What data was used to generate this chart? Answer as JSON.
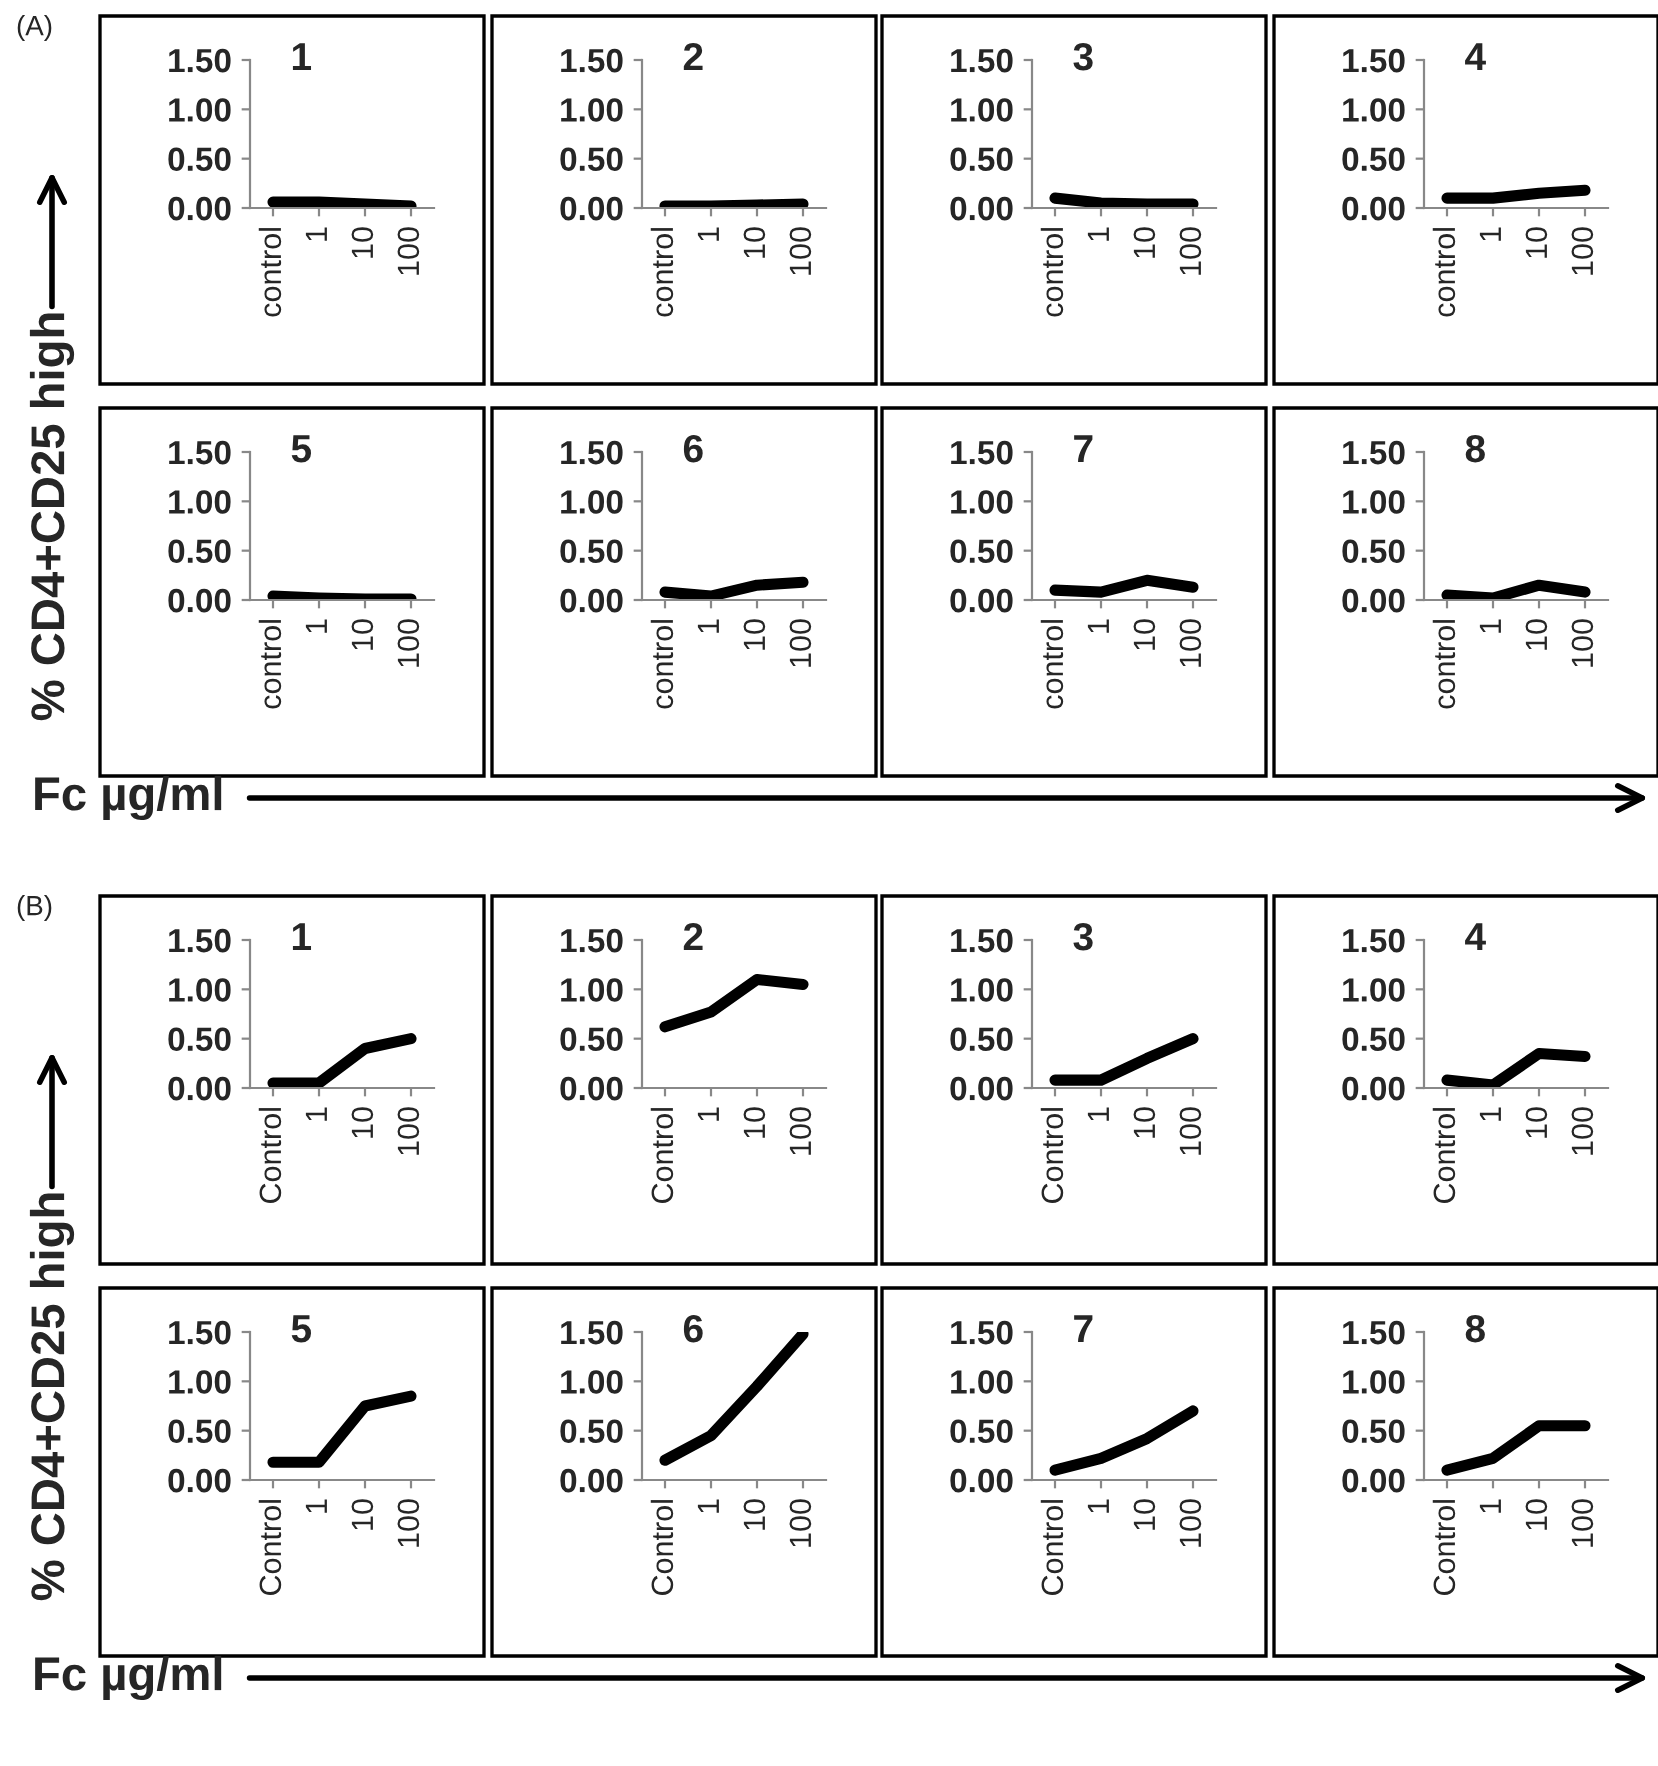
{
  "chart_data": [
    {
      "type": "line",
      "title": "1",
      "annotations": [
        "(A)"
      ],
      "ylabel": "% CD4+CD25 high",
      "categories": [
        "control",
        "1",
        "10",
        "100"
      ],
      "values": [
        0.06,
        0.06,
        0.04,
        0.02
      ],
      "color": "#000000",
      "ylim": [
        0,
        1.5
      ],
      "yticks": [
        {
          "value": 0,
          "label": "0.00"
        },
        {
          "value": 0.5,
          "label": "0.50"
        },
        {
          "value": 1,
          "label": "1.00"
        },
        {
          "value": 1.5,
          "label": "1.50"
        }
      ]
    },
    {
      "type": "line",
      "title": "2",
      "categories": [
        "control",
        "1",
        "10",
        "100"
      ],
      "values": [
        0.02,
        0.02,
        0.03,
        0.04
      ],
      "color": "#000000",
      "ylim": [
        0,
        1.5
      ],
      "yticks": [
        {
          "value": 0,
          "label": "0.00"
        },
        {
          "value": 0.5,
          "label": "0.50"
        },
        {
          "value": 1,
          "label": "1.00"
        },
        {
          "value": 1.5,
          "label": "1.50"
        }
      ]
    },
    {
      "type": "line",
      "title": "3",
      "categories": [
        "control",
        "1",
        "10",
        "100"
      ],
      "values": [
        0.1,
        0.05,
        0.04,
        0.04
      ],
      "color": "#000000",
      "ylim": [
        0,
        1.5
      ],
      "yticks": [
        {
          "value": 0,
          "label": "0.00"
        },
        {
          "value": 0.5,
          "label": "0.50"
        },
        {
          "value": 1,
          "label": "1.00"
        },
        {
          "value": 1.5,
          "label": "1.50"
        }
      ]
    },
    {
      "type": "line",
      "title": "4",
      "categories": [
        "control",
        "1",
        "10",
        "100"
      ],
      "values": [
        0.1,
        0.1,
        0.15,
        0.18
      ],
      "color": "#000000",
      "ylim": [
        0,
        1.5
      ],
      "yticks": [
        {
          "value": 0,
          "label": "0.00"
        },
        {
          "value": 0.5,
          "label": "0.50"
        },
        {
          "value": 1,
          "label": "1.00"
        },
        {
          "value": 1.5,
          "label": "1.50"
        }
      ]
    },
    {
      "type": "line",
      "title": "5",
      "xlabel": "Fc µg/ml",
      "categories": [
        "control",
        "1",
        "10",
        "100"
      ],
      "values": [
        0.04,
        0.02,
        0.01,
        0.01
      ],
      "color": "#000000",
      "ylim": [
        0,
        1.5
      ],
      "yticks": [
        {
          "value": 0,
          "label": "0.00"
        },
        {
          "value": 0.5,
          "label": "0.50"
        },
        {
          "value": 1,
          "label": "1.00"
        },
        {
          "value": 1.5,
          "label": "1.50"
        }
      ]
    },
    {
      "type": "line",
      "title": "6",
      "categories": [
        "control",
        "1",
        "10",
        "100"
      ],
      "values": [
        0.08,
        0.04,
        0.15,
        0.18
      ],
      "color": "#000000",
      "ylim": [
        0,
        1.5
      ],
      "yticks": [
        {
          "value": 0,
          "label": "0.00"
        },
        {
          "value": 0.5,
          "label": "0.50"
        },
        {
          "value": 1,
          "label": "1.00"
        },
        {
          "value": 1.5,
          "label": "1.50"
        }
      ]
    },
    {
      "type": "line",
      "title": "7",
      "categories": [
        "control",
        "1",
        "10",
        "100"
      ],
      "values": [
        0.1,
        0.08,
        0.2,
        0.13
      ],
      "color": "#000000",
      "ylim": [
        0,
        1.5
      ],
      "yticks": [
        {
          "value": 0,
          "label": "0.00"
        },
        {
          "value": 0.5,
          "label": "0.50"
        },
        {
          "value": 1,
          "label": "1.00"
        },
        {
          "value": 1.5,
          "label": "1.50"
        }
      ]
    },
    {
      "type": "line",
      "title": "8",
      "categories": [
        "control",
        "1",
        "10",
        "100"
      ],
      "values": [
        0.05,
        0.02,
        0.15,
        0.08
      ],
      "color": "#000000",
      "ylim": [
        0,
        1.5
      ],
      "yticks": [
        {
          "value": 0,
          "label": "0.00"
        },
        {
          "value": 0.5,
          "label": "0.50"
        },
        {
          "value": 1,
          "label": "1.00"
        },
        {
          "value": 1.5,
          "label": "1.50"
        }
      ]
    },
    {
      "type": "line",
      "title": "1",
      "annotations": [
        "(B)"
      ],
      "ylabel": "% CD4+CD25 high",
      "categories": [
        "Control",
        "1",
        "10",
        "100"
      ],
      "values": [
        0.05,
        0.05,
        0.4,
        0.5
      ],
      "color": "#000000",
      "ylim": [
        0,
        1.5
      ],
      "yticks": [
        {
          "value": 0,
          "label": "0.00"
        },
        {
          "value": 0.5,
          "label": "0.50"
        },
        {
          "value": 1,
          "label": "1.00"
        },
        {
          "value": 1.5,
          "label": "1.50"
        }
      ]
    },
    {
      "type": "line",
      "title": "2",
      "categories": [
        "Control",
        "1",
        "10",
        "100"
      ],
      "values": [
        0.62,
        0.77,
        1.1,
        1.05
      ],
      "color": "#000000",
      "ylim": [
        0,
        1.5
      ],
      "yticks": [
        {
          "value": 0,
          "label": "0.00"
        },
        {
          "value": 0.5,
          "label": "0.50"
        },
        {
          "value": 1,
          "label": "1.00"
        },
        {
          "value": 1.5,
          "label": "1.50"
        }
      ]
    },
    {
      "type": "line",
      "title": "3",
      "categories": [
        "Control",
        "1",
        "10",
        "100"
      ],
      "values": [
        0.08,
        0.08,
        0.3,
        0.5
      ],
      "color": "#000000",
      "ylim": [
        0,
        1.5
      ],
      "yticks": [
        {
          "value": 0,
          "label": "0.00"
        },
        {
          "value": 0.5,
          "label": "0.50"
        },
        {
          "value": 1,
          "label": "1.00"
        },
        {
          "value": 1.5,
          "label": "1.50"
        }
      ]
    },
    {
      "type": "line",
      "title": "4",
      "categories": [
        "Control",
        "1",
        "10",
        "100"
      ],
      "values": [
        0.08,
        0.03,
        0.35,
        0.32
      ],
      "color": "#000000",
      "ylim": [
        0,
        1.5
      ],
      "yticks": [
        {
          "value": 0,
          "label": "0.00"
        },
        {
          "value": 0.5,
          "label": "0.50"
        },
        {
          "value": 1,
          "label": "1.00"
        },
        {
          "value": 1.5,
          "label": "1.50"
        }
      ]
    },
    {
      "type": "line",
      "title": "5",
      "xlabel": "Fc µg/ml",
      "categories": [
        "Control",
        "1",
        "10",
        "100"
      ],
      "values": [
        0.18,
        0.18,
        0.75,
        0.85
      ],
      "color": "#000000",
      "ylim": [
        0,
        1.5
      ],
      "yticks": [
        {
          "value": 0,
          "label": "0.00"
        },
        {
          "value": 0.5,
          "label": "0.50"
        },
        {
          "value": 1,
          "label": "1.00"
        },
        {
          "value": 1.5,
          "label": "1.50"
        }
      ]
    },
    {
      "type": "line",
      "title": "6",
      "categories": [
        "Control",
        "1",
        "10",
        "100"
      ],
      "values": [
        0.2,
        0.45,
        0.95,
        1.48
      ],
      "color": "#000000",
      "ylim": [
        0,
        1.5
      ],
      "yticks": [
        {
          "value": 0,
          "label": "0.00"
        },
        {
          "value": 0.5,
          "label": "0.50"
        },
        {
          "value": 1,
          "label": "1.00"
        },
        {
          "value": 1.5,
          "label": "1.50"
        }
      ]
    },
    {
      "type": "line",
      "title": "7",
      "categories": [
        "Control",
        "1",
        "10",
        "100"
      ],
      "values": [
        0.1,
        0.22,
        0.42,
        0.7
      ],
      "color": "#000000",
      "ylim": [
        0,
        1.5
      ],
      "yticks": [
        {
          "value": 0,
          "label": "0.00"
        },
        {
          "value": 0.5,
          "label": "0.50"
        },
        {
          "value": 1,
          "label": "1.00"
        },
        {
          "value": 1.5,
          "label": "1.50"
        }
      ]
    },
    {
      "type": "line",
      "title": "8",
      "categories": [
        "Control",
        "1",
        "10",
        "100"
      ],
      "values": [
        0.1,
        0.22,
        0.55,
        0.55
      ],
      "color": "#000000",
      "ylim": [
        0,
        1.5
      ],
      "yticks": [
        {
          "value": 0,
          "label": "0.00"
        },
        {
          "value": 0.5,
          "label": "0.50"
        },
        {
          "value": 1,
          "label": "1.00"
        },
        {
          "value": 1.5,
          "label": "1.50"
        }
      ]
    }
  ]
}
